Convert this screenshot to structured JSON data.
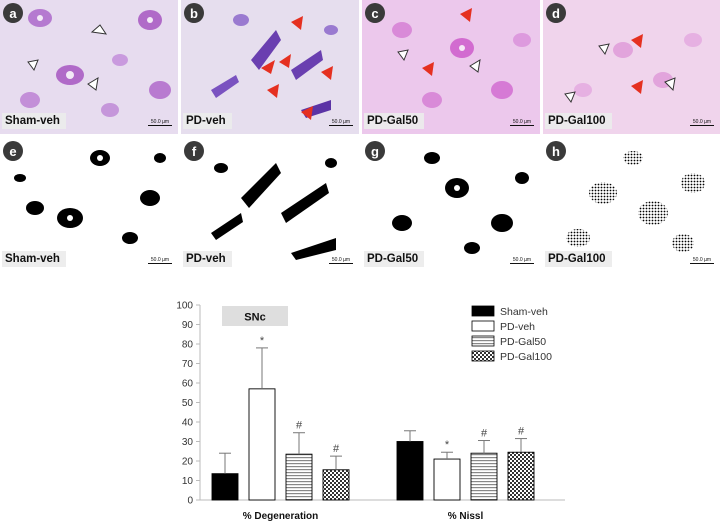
{
  "panels": [
    {
      "letter": "a",
      "title": "Sham-veh",
      "scale": "50.0 µm"
    },
    {
      "letter": "b",
      "title": "PD-veh",
      "scale": "50.0 µm"
    },
    {
      "letter": "c",
      "title": "PD-Gal50",
      "scale": "50.0 µm"
    },
    {
      "letter": "d",
      "title": "PD-Gal100",
      "scale": "50.0 µm"
    },
    {
      "letter": "e",
      "title": "Sham-veh",
      "scale": "50.0 µm"
    },
    {
      "letter": "f",
      "title": "PD-veh",
      "scale": "50.0 µm"
    },
    {
      "letter": "g",
      "title": "PD-Gal50",
      "scale": "50.0 µm"
    },
    {
      "letter": "h",
      "title": "PD-Gal100",
      "scale": "50.0 µm"
    }
  ],
  "chart_data": {
    "type": "bar",
    "title": "SNc",
    "categories": [
      "% Degeneration",
      "% Nissl"
    ],
    "ylim": [
      0,
      100
    ],
    "yticks": [
      0,
      10,
      20,
      30,
      40,
      50,
      60,
      70,
      80,
      90,
      100
    ],
    "legend_position": "top-right",
    "series": [
      {
        "name": "Sham-veh",
        "values": [
          13.5,
          30
        ],
        "errors": [
          10.5,
          5.5
        ],
        "marks": [
          "",
          ""
        ]
      },
      {
        "name": "PD-veh",
        "values": [
          57,
          21
        ],
        "errors": [
          21,
          3.5
        ],
        "marks": [
          "*",
          "*"
        ]
      },
      {
        "name": "PD-Gal50",
        "values": [
          23.5,
          24
        ],
        "errors": [
          11,
          6.5
        ],
        "marks": [
          "#",
          "#"
        ]
      },
      {
        "name": "PD-Gal100",
        "values": [
          15.5,
          24.5
        ],
        "errors": [
          7,
          7
        ],
        "marks": [
          "#",
          "#"
        ]
      }
    ]
  }
}
